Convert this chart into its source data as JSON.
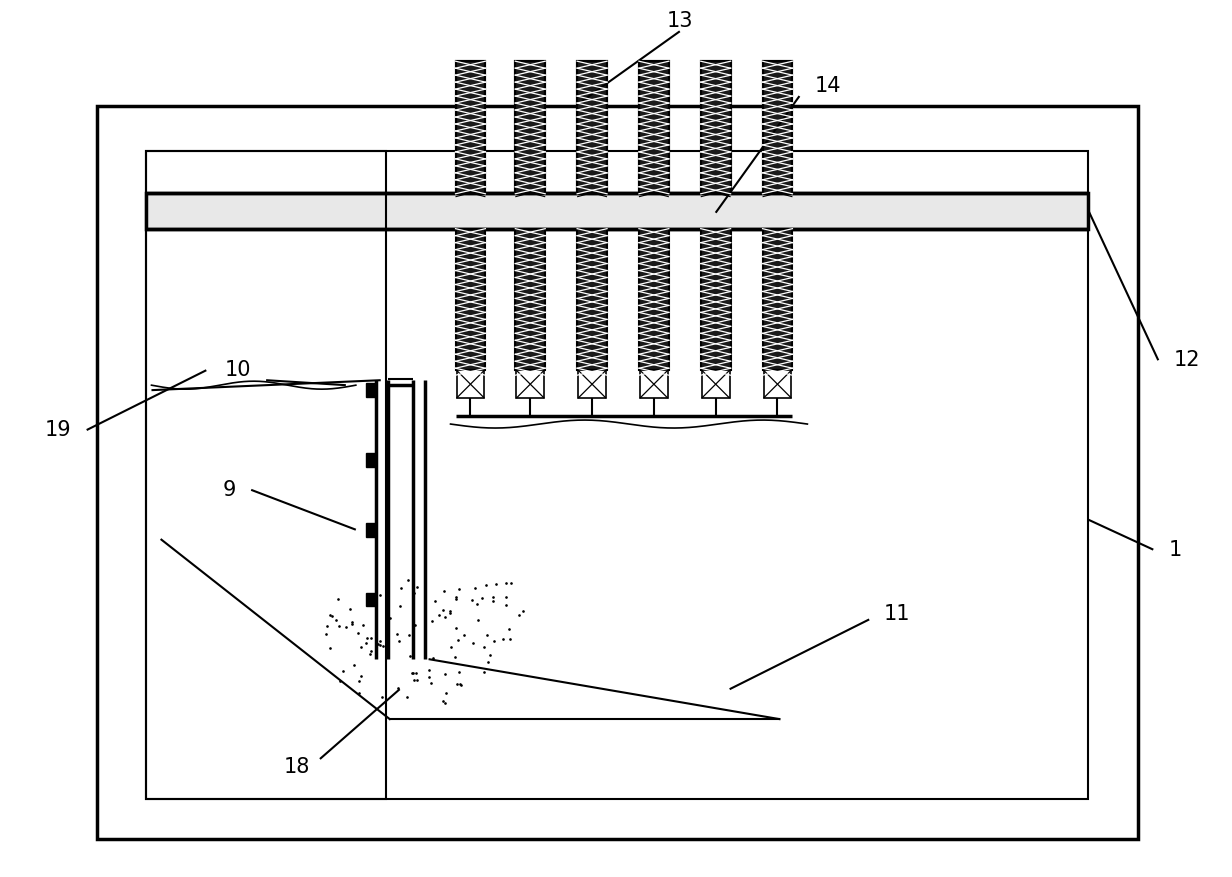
{
  "bg_color": "#ffffff",
  "line_color": "#000000",
  "lw": 1.5,
  "tlw": 2.5,
  "fig_width": 12.32,
  "fig_height": 8.77,
  "dpi": 100
}
